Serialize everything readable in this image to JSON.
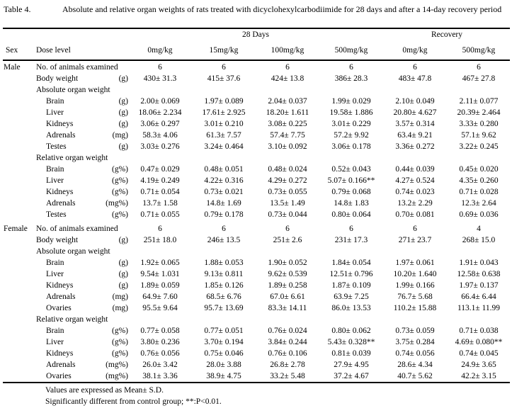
{
  "table": {
    "label": "Table 4.",
    "caption": "Absolute and relative organ weights of rats treated with dicyclohexylcarbodiimide for 28 days and after a 14-day recovery period",
    "groups": {
      "days28": "28 Days",
      "recovery": "Recovery"
    },
    "headers": {
      "sex": "Sex",
      "dose_level": "Dose level",
      "doses": [
        "0mg/kg",
        "15mg/kg",
        "100mg/kg",
        "500mg/kg",
        "0mg/kg",
        "500mg/kg"
      ]
    },
    "sections": [
      {
        "sex": "Male",
        "rows": [
          {
            "label": "No. of animals examined",
            "unit": "",
            "indent": 0,
            "values": [
              "6",
              "6",
              "6",
              "6",
              "6",
              "6"
            ]
          },
          {
            "label": "Body weight",
            "unit": "(g)",
            "indent": 0,
            "values": [
              "430± 31.3",
              "415± 37.6",
              "424± 13.8",
              "386± 28.3",
              "483± 47.8",
              "467± 27.8"
            ]
          },
          {
            "label": "Absolute organ weight",
            "unit": "",
            "indent": 0,
            "values": null
          },
          {
            "label": "Brain",
            "unit": "(g)",
            "indent": 1,
            "values": [
              "2.00± 0.069",
              "1.97± 0.089",
              "2.04± 0.037",
              "1.99± 0.029",
              "2.10± 0.049",
              "2.11± 0.077"
            ]
          },
          {
            "label": "Liver",
            "unit": "(g)",
            "indent": 1,
            "values": [
              "18.06± 2.234",
              "17.61± 2.925",
              "18.20± 1.611",
              "19.58± 1.886",
              "20.80± 4.627",
              "20.39± 2.464"
            ]
          },
          {
            "label": "Kidneys",
            "unit": "(g)",
            "indent": 1,
            "values": [
              "3.06± 0.297",
              "3.01± 0.210",
              "3.08± 0.225",
              "3.01± 0.229",
              "3.57± 0.314",
              "3.33± 0.280"
            ]
          },
          {
            "label": "Adrenals",
            "unit": "(mg)",
            "indent": 1,
            "values": [
              "58.3± 4.06",
              "61.3± 7.57",
              "57.4± 7.75",
              "57.2± 9.92",
              "63.4± 9.21",
              "57.1± 9.62"
            ]
          },
          {
            "label": "Testes",
            "unit": "(g)",
            "indent": 1,
            "values": [
              "3.03± 0.276",
              "3.24± 0.464",
              "3.10± 0.092",
              "3.06± 0.178",
              "3.36± 0.272",
              "3.22± 0.245"
            ]
          },
          {
            "label": "Relative organ weight",
            "unit": "",
            "indent": 0,
            "values": null
          },
          {
            "label": "Brain",
            "unit": "(g%)",
            "indent": 1,
            "values": [
              "0.47± 0.029",
              "0.48± 0.051",
              "0.48± 0.024",
              "0.52± 0.043",
              "0.44± 0.039",
              "0.45± 0.020"
            ]
          },
          {
            "label": "Liver",
            "unit": "(g%)",
            "indent": 1,
            "values": [
              "4.19± 0.249",
              "4.22± 0.316",
              "4.29± 0.272",
              "5.07± 0.166**",
              "4.27± 0.524",
              "4.35± 0.260"
            ]
          },
          {
            "label": "Kidneys",
            "unit": "(g%)",
            "indent": 1,
            "values": [
              "0.71± 0.054",
              "0.73± 0.021",
              "0.73± 0.055",
              "0.79± 0.068",
              "0.74± 0.023",
              "0.71± 0.028"
            ]
          },
          {
            "label": "Adrenals",
            "unit": "(mg%)",
            "indent": 1,
            "values": [
              "13.7± 1.58",
              "14.8± 1.69",
              "13.5± 1.49",
              "14.8± 1.83",
              "13.2± 2.29",
              "12.3± 2.64"
            ]
          },
          {
            "label": "Testes",
            "unit": "(g%)",
            "indent": 1,
            "values": [
              "0.71± 0.055",
              "0.79± 0.178",
              "0.73± 0.044",
              "0.80± 0.064",
              "0.70± 0.081",
              "0.69± 0.036"
            ]
          }
        ]
      },
      {
        "sex": "Female",
        "rows": [
          {
            "label": "No. of animals examined",
            "unit": "",
            "indent": 0,
            "values": [
              "6",
              "6",
              "6",
              "6",
              "6",
              "4"
            ]
          },
          {
            "label": "Body weight",
            "unit": "(g)",
            "indent": 0,
            "values": [
              "251± 18.0",
              "246± 13.5",
              "251± 2.6",
              "231± 17.3",
              "271± 23.7",
              "268± 15.0"
            ]
          },
          {
            "label": "Absolute organ weight",
            "unit": "",
            "indent": 0,
            "values": null
          },
          {
            "label": "Brain",
            "unit": "(g)",
            "indent": 1,
            "values": [
              "1.92± 0.065",
              "1.88± 0.053",
              "1.90± 0.052",
              "1.84± 0.054",
              "1.97± 0.061",
              "1.91± 0.043"
            ]
          },
          {
            "label": "Liver",
            "unit": "(g)",
            "indent": 1,
            "values": [
              "9.54± 1.031",
              "9.13± 0.811",
              "9.62± 0.539",
              "12.51± 0.796",
              "10.20± 1.640",
              "12.58± 0.638"
            ]
          },
          {
            "label": "Kidneys",
            "unit": "(g)",
            "indent": 1,
            "values": [
              "1.89± 0.059",
              "1.85± 0.126",
              "1.89± 0.258",
              "1.87± 0.109",
              "1.99± 0.166",
              "1.97± 0.137"
            ]
          },
          {
            "label": "Adrenals",
            "unit": "(mg)",
            "indent": 1,
            "values": [
              "64.9± 7.60",
              "68.5± 6.76",
              "67.0± 6.61",
              "63.9± 7.25",
              "76.7± 5.68",
              "66.4± 6.44"
            ]
          },
          {
            "label": "Ovaries",
            "unit": "(mg)",
            "indent": 1,
            "values": [
              "95.5± 9.64",
              "95.7± 13.69",
              "83.3± 14.11",
              "86.0± 13.53",
              "110.2± 15.88",
              "113.1± 11.99"
            ]
          },
          {
            "label": "Relative organ weight",
            "unit": "",
            "indent": 0,
            "values": null
          },
          {
            "label": "Brain",
            "unit": "(g%)",
            "indent": 1,
            "values": [
              "0.77± 0.058",
              "0.77± 0.051",
              "0.76± 0.024",
              "0.80± 0.062",
              "0.73± 0.059",
              "0.71± 0.038"
            ]
          },
          {
            "label": "Liver",
            "unit": "(g%)",
            "indent": 1,
            "values": [
              "3.80± 0.236",
              "3.70± 0.194",
              "3.84± 0.244",
              "5.43± 0.328**",
              "3.75± 0.284",
              "4.69± 0.080**"
            ]
          },
          {
            "label": "Kidneys",
            "unit": "(g%)",
            "indent": 1,
            "values": [
              "0.76± 0.056",
              "0.75± 0.046",
              "0.76± 0.106",
              "0.81± 0.039",
              "0.74± 0.056",
              "0.74± 0.045"
            ]
          },
          {
            "label": "Adrenals",
            "unit": "(mg%)",
            "indent": 1,
            "values": [
              "26.0± 3.42",
              "28.0± 3.88",
              "26.8± 2.78",
              "27.9± 4.95",
              "28.6± 4.34",
              "24.9± 3.65"
            ]
          },
          {
            "label": "Ovaries",
            "unit": "(mg%)",
            "indent": 1,
            "values": [
              "38.1± 3.36",
              "38.9± 4.75",
              "33.2± 5.48",
              "37.2± 4.67",
              "40.7± 5.62",
              "42.2± 3.15"
            ]
          }
        ]
      }
    ],
    "footnotes": {
      "line1": "Values are expressed as Mean± S.D.",
      "line2": "Significantly different from control group; **:P<0.01."
    }
  }
}
